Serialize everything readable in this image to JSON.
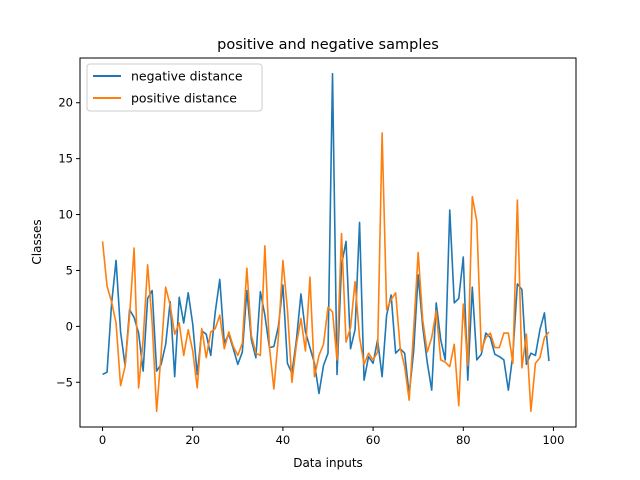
{
  "chart_data": {
    "type": "line",
    "title": "positive and negative samples",
    "xlabel": "Data inputs",
    "ylabel": "Classes",
    "xlim": [
      -5,
      105
    ],
    "ylim": [
      -9,
      24
    ],
    "xticks": [
      0,
      20,
      40,
      60,
      80,
      100
    ],
    "yticks": [
      -5,
      0,
      5,
      10,
      15,
      20
    ],
    "grid": false,
    "legend_position": "upper left",
    "series": [
      {
        "name": "negative distance",
        "color": "#1f77b4",
        "x": [
          0,
          1,
          2,
          3,
          4,
          5,
          6,
          7,
          8,
          9,
          10,
          11,
          12,
          13,
          14,
          15,
          16,
          17,
          18,
          19,
          20,
          21,
          22,
          23,
          24,
          25,
          26,
          27,
          28,
          29,
          30,
          31,
          32,
          33,
          34,
          35,
          36,
          37,
          38,
          39,
          40,
          41,
          42,
          43,
          44,
          45,
          46,
          47,
          48,
          49,
          50,
          51,
          52,
          53,
          54,
          55,
          56,
          57,
          58,
          59,
          60,
          61,
          62,
          63,
          64,
          65,
          66,
          67,
          68,
          69,
          70,
          71,
          72,
          73,
          74,
          75,
          76,
          77,
          78,
          79,
          80,
          81,
          82,
          83,
          84,
          85,
          86,
          87,
          88,
          89,
          90,
          91,
          92,
          93,
          94,
          95,
          96,
          97,
          98,
          99
        ],
        "values": [
          -4.3,
          -4.1,
          2.0,
          5.9,
          -0.5,
          -3.5,
          1.5,
          0.8,
          -0.6,
          -4.0,
          2.5,
          3.2,
          -4.0,
          -3.4,
          -1.6,
          2.2,
          -4.5,
          2.6,
          0.3,
          3.0,
          0.2,
          -4.3,
          -0.4,
          -0.7,
          -2.6,
          1.3,
          4.2,
          -1.5,
          -0.7,
          -2.0,
          -3.4,
          -2.3,
          3.2,
          -1.2,
          -2.8,
          3.1,
          1.0,
          -1.9,
          -1.8,
          0.0,
          3.7,
          -3.3,
          -4.2,
          -1.2,
          2.9,
          -0.5,
          -1.9,
          -3.3,
          -6.0,
          -3.5,
          -2.4,
          22.6,
          -4.3,
          5.5,
          7.6,
          -2.0,
          -0.3,
          9.3,
          -4.8,
          -2.7,
          -3.3,
          -1.2,
          -4.5,
          1.0,
          2.8,
          -2.4,
          -2.0,
          -2.4,
          -6.1,
          -2.2,
          4.6,
          0.0,
          -3.2,
          -5.7,
          2.1,
          -1.2,
          -3.0,
          10.4,
          2.1,
          2.5,
          6.2,
          -4.8,
          3.5,
          -3.0,
          -2.5,
          -0.6,
          -1.0,
          -2.5,
          -2.7,
          -3.0,
          -5.7,
          -2.5,
          3.8,
          3.3,
          -3.4,
          -2.4,
          -2.6,
          -0.3,
          1.2,
          -3.1
        ]
      },
      {
        "name": "positive distance",
        "color": "#ff7f0e",
        "x": [
          0,
          1,
          2,
          3,
          4,
          5,
          6,
          7,
          8,
          9,
          10,
          11,
          12,
          13,
          14,
          15,
          16,
          17,
          18,
          19,
          20,
          21,
          22,
          23,
          24,
          25,
          26,
          27,
          28,
          29,
          30,
          31,
          32,
          33,
          34,
          35,
          36,
          37,
          38,
          39,
          40,
          41,
          42,
          43,
          44,
          45,
          46,
          47,
          48,
          49,
          50,
          51,
          52,
          53,
          54,
          55,
          56,
          57,
          58,
          59,
          60,
          61,
          62,
          63,
          64,
          65,
          66,
          67,
          68,
          69,
          70,
          71,
          72,
          73,
          74,
          75,
          76,
          77,
          78,
          79,
          80,
          81,
          82,
          83,
          84,
          85,
          86,
          87,
          88,
          89,
          90,
          91,
          92,
          93,
          94,
          95,
          96,
          97,
          98,
          99
        ],
        "values": [
          7.6,
          3.6,
          2.2,
          0.3,
          -5.3,
          -3.6,
          1.0,
          7.0,
          -5.5,
          -1.2,
          5.5,
          0.3,
          -7.6,
          -2.4,
          3.5,
          1.9,
          -0.7,
          0.3,
          -2.6,
          -0.3,
          -2.2,
          -5.5,
          -0.2,
          -2.8,
          -0.5,
          -0.2,
          1.0,
          -2.0,
          -0.5,
          -1.8,
          -2.6,
          -1.5,
          5.2,
          -0.8,
          -2.4,
          -2.6,
          7.2,
          -1.8,
          -5.6,
          -0.9,
          5.9,
          1.5,
          -5.0,
          -1.6,
          0.7,
          -2.2,
          4.4,
          -4.5,
          -2.6,
          -1.6,
          1.7,
          1.3,
          -3.0,
          8.3,
          -1.4,
          -0.1,
          4.0,
          -1.0,
          -3.4,
          -2.4,
          -3.0,
          -2.3,
          17.3,
          1.5,
          2.4,
          3.0,
          -1.9,
          -3.6,
          -6.6,
          -0.3,
          6.6,
          0.6,
          -2.3,
          -1.0,
          1.4,
          -3.0,
          -3.2,
          -3.6,
          -1.6,
          -7.1,
          2.0,
          -3.5,
          11.6,
          9.4,
          -2.2,
          -1.0,
          -0.6,
          -1.9,
          -1.9,
          -0.6,
          -0.6,
          -3.3,
          11.3,
          -3.7,
          -0.7,
          -7.6,
          -3.3,
          -2.8,
          -1.0,
          -0.5
        ]
      }
    ]
  }
}
